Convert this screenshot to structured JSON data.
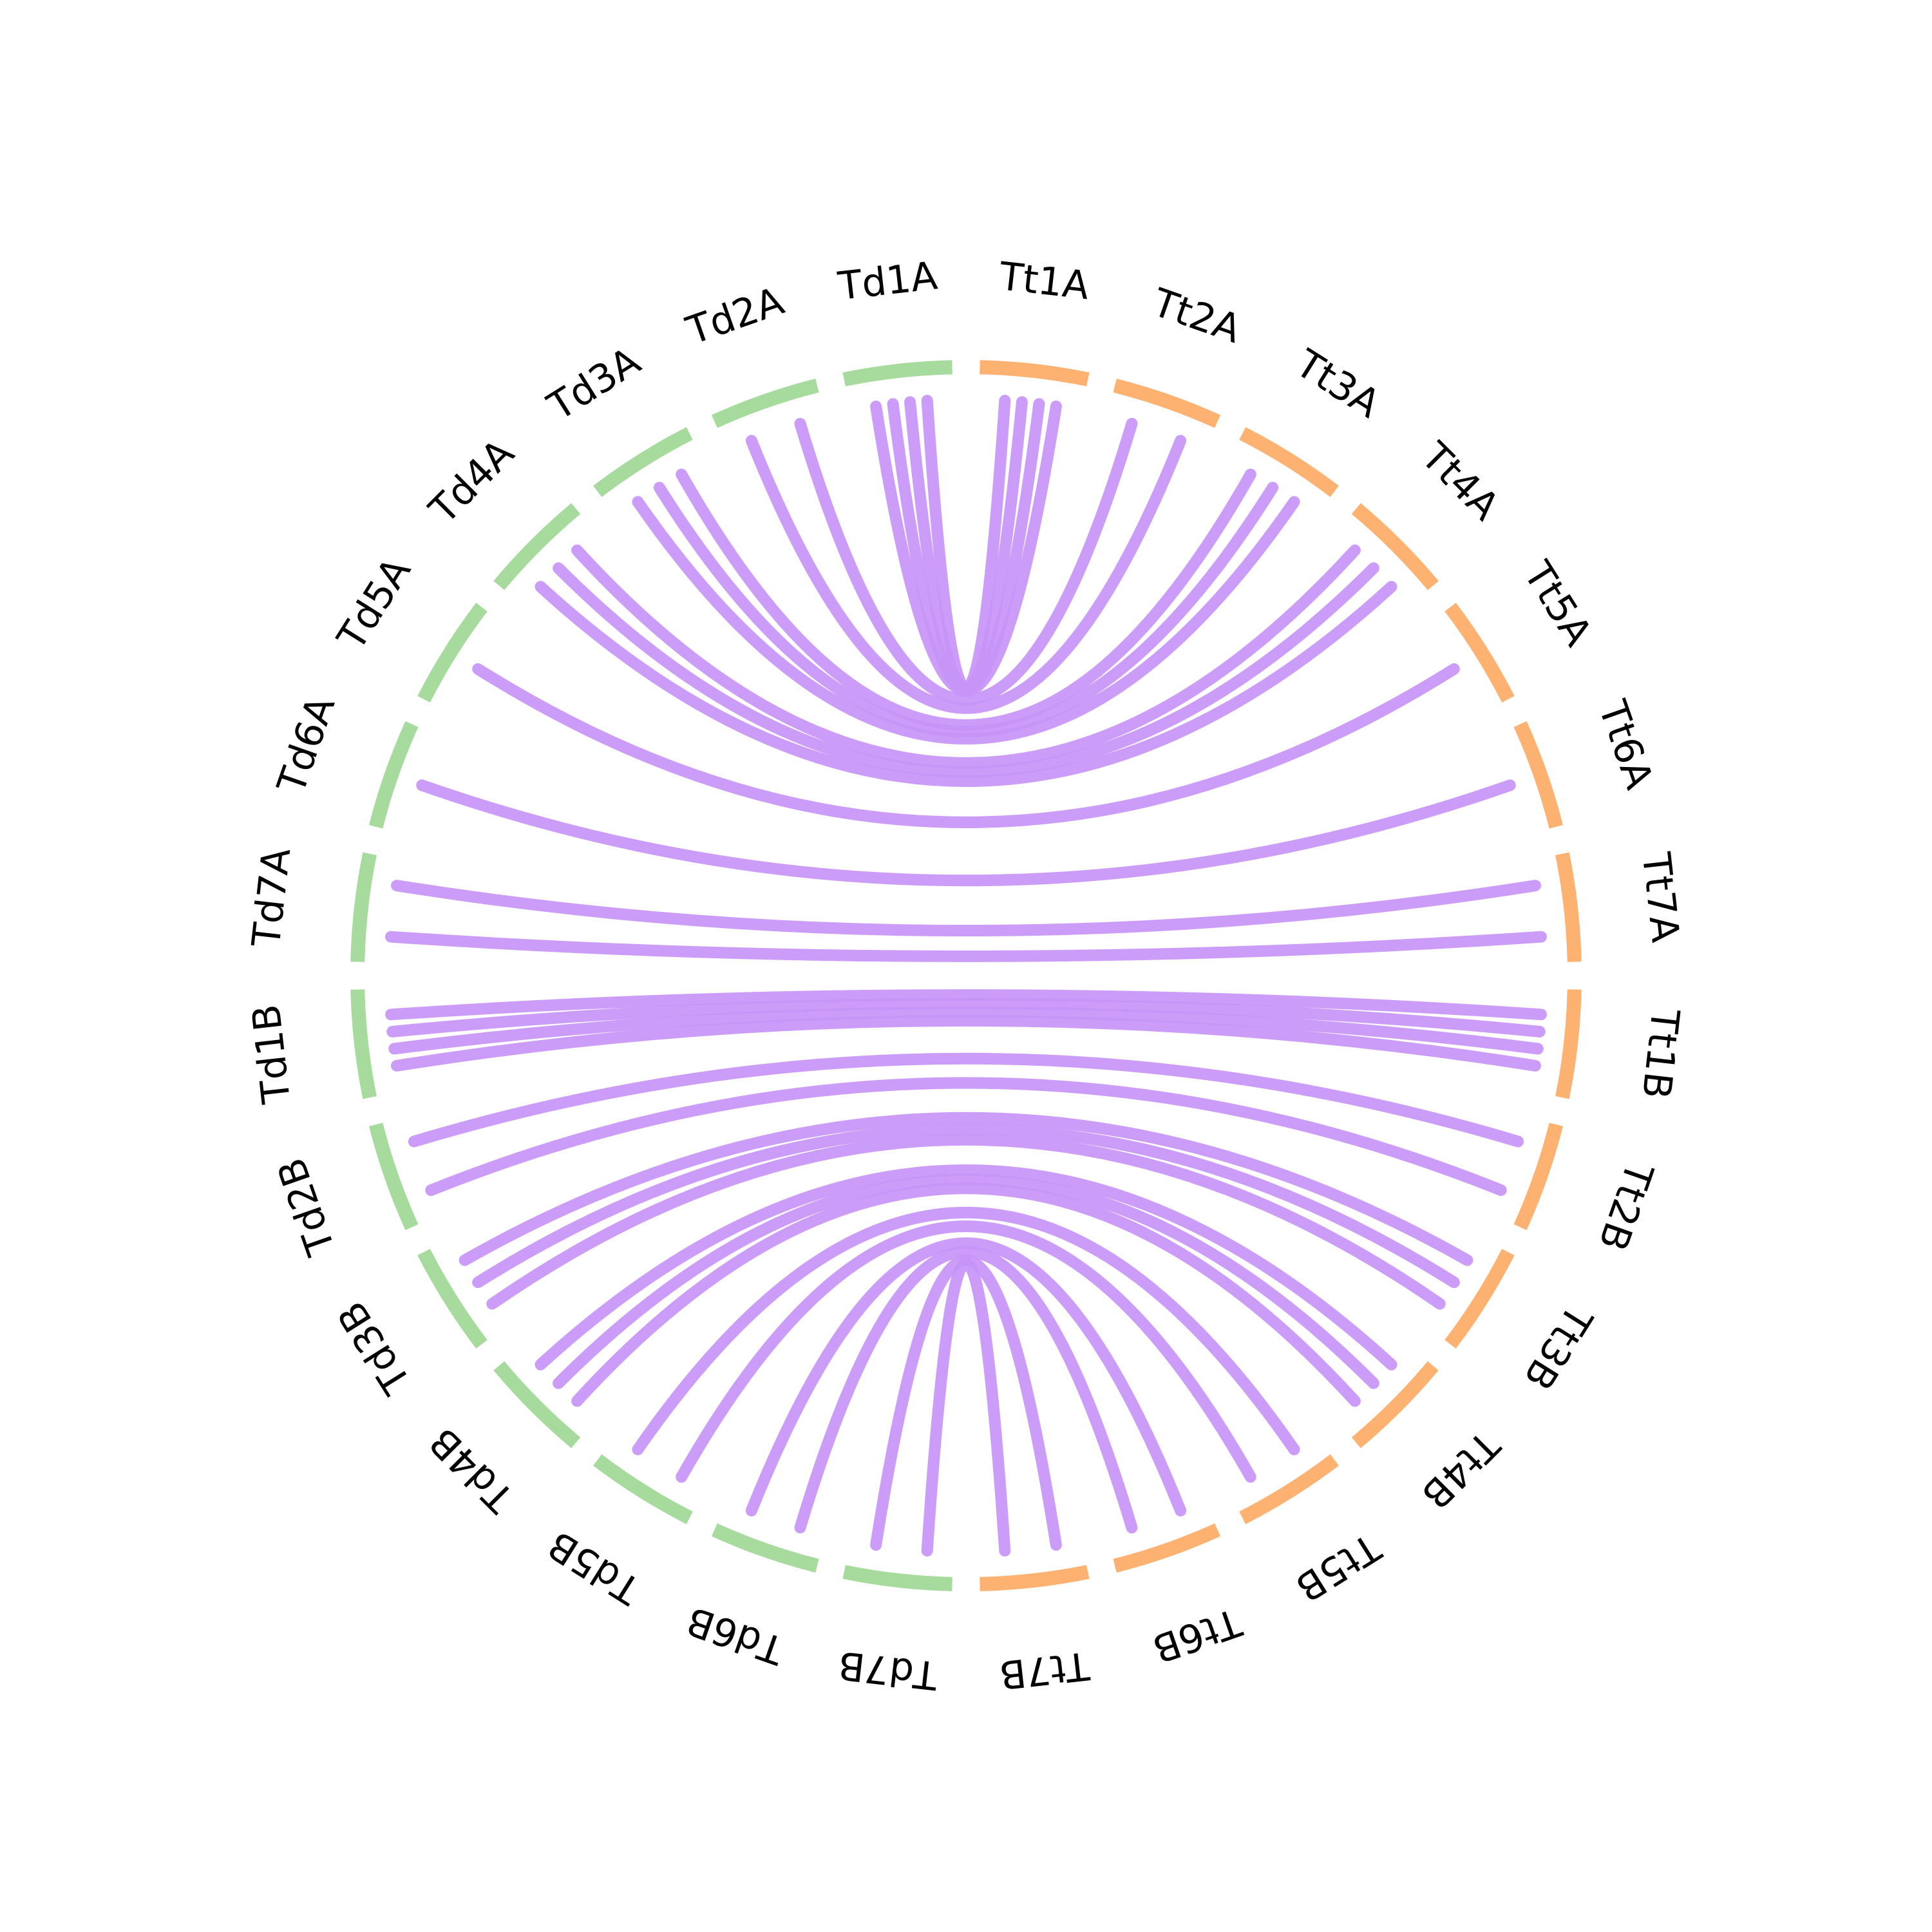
{
  "diagram": {
    "colors": {
      "group_a": "#a6db9d",
      "group_b": "#fdb272",
      "links": "#c795f7",
      "labels": "#000000"
    },
    "segments": [
      {
        "label": "Td1A",
        "group": "a"
      },
      {
        "label": "Td2A",
        "group": "a"
      },
      {
        "label": "Td3A",
        "group": "a"
      },
      {
        "label": "Td4A",
        "group": "a"
      },
      {
        "label": "Td5A",
        "group": "a"
      },
      {
        "label": "Td6A",
        "group": "a"
      },
      {
        "label": "Td7A",
        "group": "a"
      },
      {
        "label": "Td1B",
        "group": "a"
      },
      {
        "label": "Td2B",
        "group": "a"
      },
      {
        "label": "Td3B",
        "group": "a"
      },
      {
        "label": "Td4B",
        "group": "a"
      },
      {
        "label": "Td5B",
        "group": "a"
      },
      {
        "label": "Td6B",
        "group": "a"
      },
      {
        "label": "Td7B",
        "group": "a"
      },
      {
        "label": "Tt7B",
        "group": "b"
      },
      {
        "label": "Tt6B",
        "group": "b"
      },
      {
        "label": "Tt5B",
        "group": "b"
      },
      {
        "label": "Tt4B",
        "group": "b"
      },
      {
        "label": "Tt3B",
        "group": "b"
      },
      {
        "label": "Tt2B",
        "group": "b"
      },
      {
        "label": "Tt1B",
        "group": "b"
      },
      {
        "label": "Tt7A",
        "group": "b"
      },
      {
        "label": "Tt6A",
        "group": "b"
      },
      {
        "label": "Tt5A",
        "group": "b"
      },
      {
        "label": "Tt4A",
        "group": "b"
      },
      {
        "label": "Tt3A",
        "group": "b"
      },
      {
        "label": "Tt2A",
        "group": "b"
      },
      {
        "label": "Tt1A",
        "group": "b"
      }
    ],
    "links": [
      {
        "from": "Td1A",
        "to": "Tt1A",
        "count": 4
      },
      {
        "from": "Td2A",
        "to": "Tt2A",
        "count": 2
      },
      {
        "from": "Td3A",
        "to": "Tt3A",
        "count": 3
      },
      {
        "from": "Td4A",
        "to": "Tt4A",
        "count": 3
      },
      {
        "from": "Td5A",
        "to": "Tt5A",
        "count": 1
      },
      {
        "from": "Td6A",
        "to": "Tt6A",
        "count": 1
      },
      {
        "from": "Td7A",
        "to": "Tt7A",
        "count": 2
      },
      {
        "from": "Td1B",
        "to": "Tt1B",
        "count": 4
      },
      {
        "from": "Td2B",
        "to": "Tt2B",
        "count": 2
      },
      {
        "from": "Td3B",
        "to": "Tt3B",
        "count": 3
      },
      {
        "from": "Td4B",
        "to": "Tt4B",
        "count": 3
      },
      {
        "from": "Td5B",
        "to": "Tt5B",
        "count": 2
      },
      {
        "from": "Td6B",
        "to": "Tt6B",
        "count": 2
      },
      {
        "from": "Td7B",
        "to": "Tt7B",
        "count": 2
      }
    ]
  }
}
